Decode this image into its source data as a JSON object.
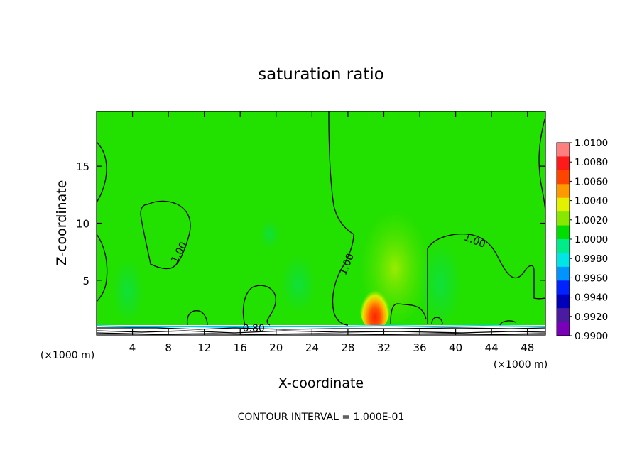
{
  "chart_data": {
    "type": "heatmap",
    "title": "saturation ratio",
    "xlabel": "X-coordinate",
    "ylabel": "Z-coordinate",
    "x_unit": "(×1000 m)",
    "xlim": [
      0,
      50
    ],
    "ylim": [
      0.2,
      19.8
    ],
    "x_ticks": [
      4,
      8,
      12,
      16,
      20,
      24,
      28,
      32,
      36,
      40,
      44,
      48
    ],
    "y_ticks": [
      5,
      10,
      15
    ],
    "footer": "CONTOUR INTERVAL = 1.000E-01",
    "contour_labels": [
      {
        "text": "1.00",
        "x": 9.5,
        "z": 7.3
      },
      {
        "text": "1.00",
        "x": 28.2,
        "z": 6.3
      },
      {
        "text": "1.00",
        "x": 42.0,
        "z": 8.2
      },
      {
        "text": "0.80",
        "x": 17.5,
        "z": 0.5
      }
    ],
    "colorbar": {
      "labels": [
        "1.0100",
        "1.0080",
        "1.0060",
        "1.0040",
        "1.0020",
        "1.0000",
        "0.9980",
        "0.9960",
        "0.9940",
        "0.9920",
        "0.9900"
      ],
      "colors": [
        "#ff7f7f",
        "#ff1a1a",
        "#ff4400",
        "#ff9900",
        "#e3f000",
        "#88e800",
        "#00dd00",
        "#00eb8a",
        "#00e5e5",
        "#0094ff",
        "#0022ff",
        "#0000bb",
        "#4a1aa0",
        "#7a00b8"
      ]
    }
  }
}
